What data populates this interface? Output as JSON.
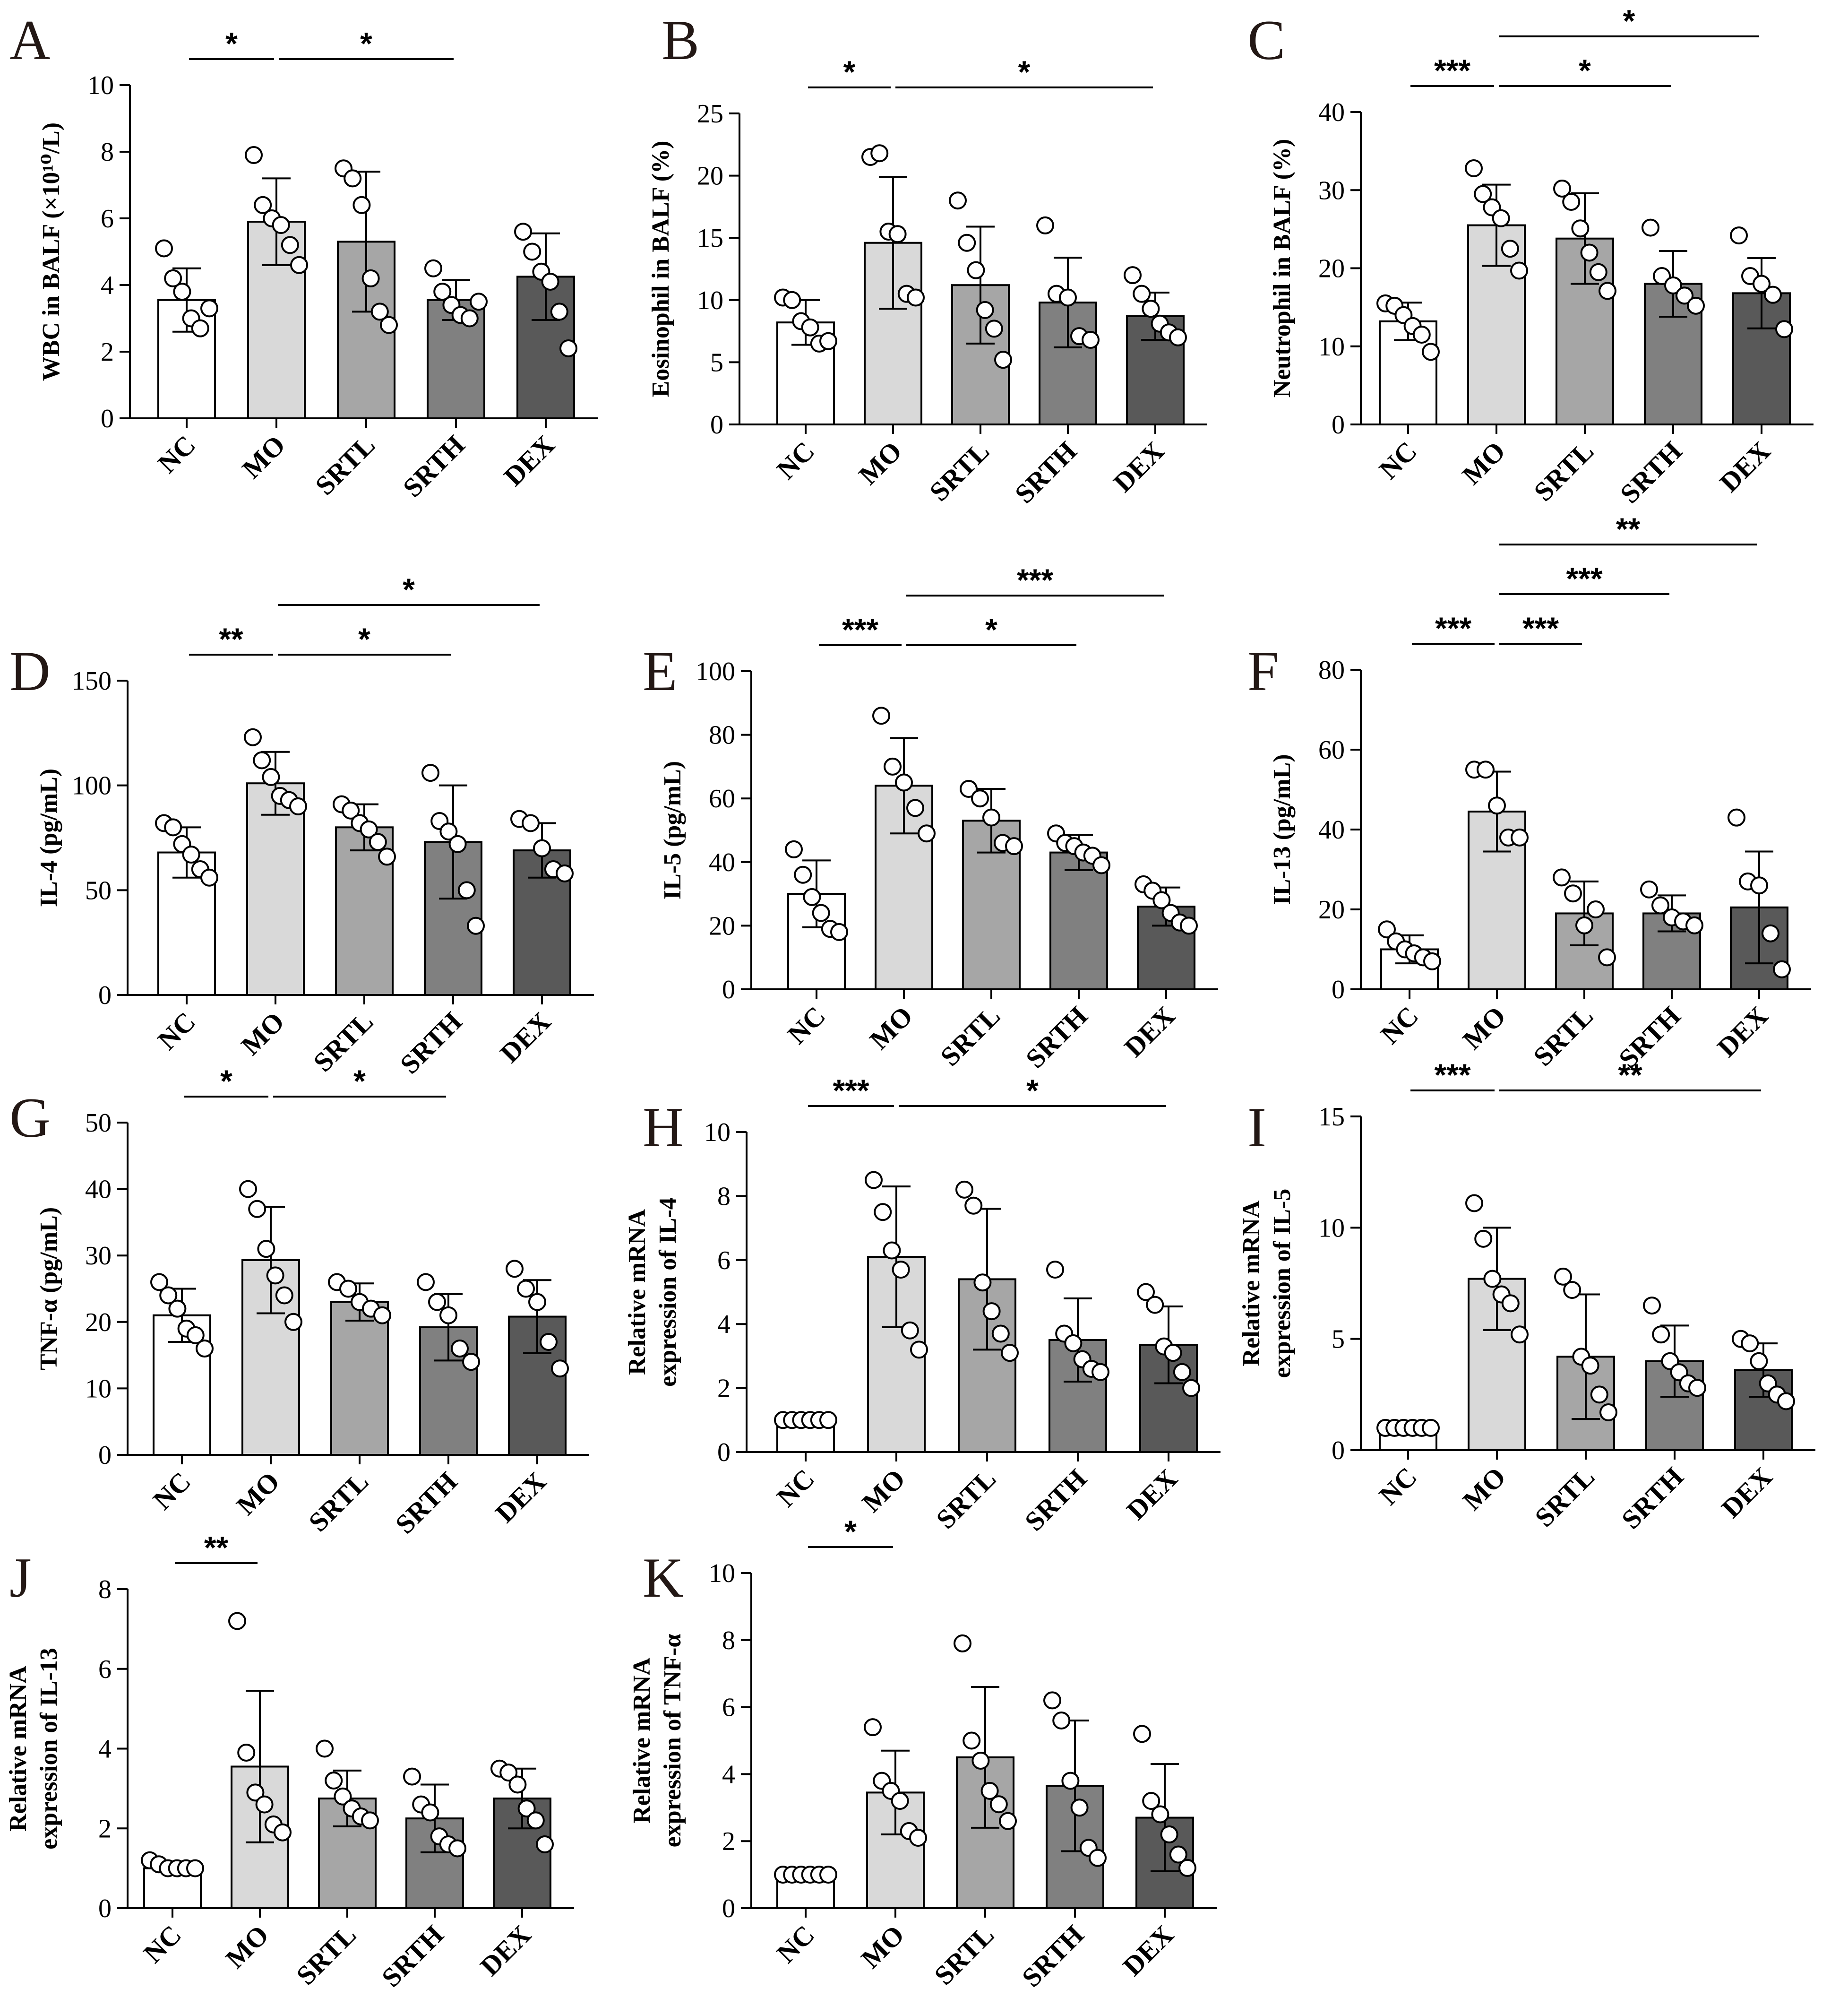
{
  "figure": {
    "categories": [
      "NC",
      "MO",
      "SRTL",
      "SRTH",
      "DEX"
    ],
    "bar_colors": [
      "#ffffff",
      "#d9d9d9",
      "#a6a6a6",
      "#808080",
      "#595959"
    ]
  },
  "chart_data": [
    {
      "panel": "A",
      "type": "bar",
      "ylabel": "WBC in BALF (×10¹⁰/L)",
      "ylim": [
        0,
        10
      ],
      "yticks": [
        "0",
        "2",
        "4",
        "6",
        "8",
        "10"
      ],
      "categories": [
        "NC",
        "MO",
        "SRTL",
        "SRTH",
        "DEX"
      ],
      "values": [
        3.55,
        5.9,
        5.3,
        3.55,
        4.25
      ],
      "errors": [
        0.95,
        1.3,
        2.1,
        0.6,
        1.3
      ],
      "points": [
        [
          5.1,
          4.2,
          3.8,
          3.0,
          2.7,
          3.3
        ],
        [
          7.9,
          6.4,
          6.0,
          5.8,
          5.2,
          4.6
        ],
        [
          7.5,
          7.2,
          6.4,
          4.2,
          3.2,
          2.8
        ],
        [
          4.5,
          3.8,
          3.4,
          3.1,
          3.0,
          3.5
        ],
        [
          5.6,
          5.0,
          4.4,
          4.1,
          3.2,
          2.1
        ]
      ],
      "significance": [
        {
          "from": 0,
          "to": 1,
          "label": "*",
          "level": 1
        },
        {
          "from": 1,
          "to": 3,
          "label": "*",
          "level": 1
        }
      ]
    },
    {
      "panel": "B",
      "type": "bar",
      "ylabel": "Eosinophil  in BALF (%)",
      "ylim": [
        0,
        25
      ],
      "yticks": [
        "0",
        "5",
        "10",
        "15",
        "20",
        "25"
      ],
      "categories": [
        "NC",
        "MO",
        "SRTL",
        "SRTH",
        "DEX"
      ],
      "values": [
        8.2,
        14.6,
        11.2,
        9.8,
        8.7
      ],
      "errors": [
        1.8,
        5.3,
        4.7,
        3.6,
        1.9
      ],
      "points": [
        [
          10.2,
          10.0,
          8.3,
          7.8,
          6.5,
          6.7
        ],
        [
          21.5,
          21.8,
          15.5,
          15.3,
          10.5,
          10.2
        ],
        [
          18.0,
          14.6,
          12.4,
          9.2,
          7.7,
          5.2
        ],
        [
          16.0,
          10.5,
          10.2,
          7.1,
          6.8
        ],
        [
          12.0,
          10.5,
          9.3,
          8.1,
          7.4,
          7.0
        ]
      ],
      "significance": [
        {
          "from": 0,
          "to": 1,
          "label": "*",
          "level": 1
        },
        {
          "from": 1,
          "to": 4,
          "label": "*",
          "level": 1
        }
      ]
    },
    {
      "panel": "C",
      "type": "bar",
      "ylabel": "Neutrophil  in BALF (%)",
      "ylim": [
        0,
        40
      ],
      "yticks": [
        "0",
        "10",
        "20",
        "30",
        "40"
      ],
      "categories": [
        "NC",
        "MO",
        "SRTL",
        "SRTH",
        "DEX"
      ],
      "values": [
        13.2,
        25.5,
        23.8,
        18.0,
        16.8
      ],
      "errors": [
        2.4,
        5.2,
        5.8,
        4.2,
        4.5
      ],
      "points": [
        [
          15.5,
          15.2,
          14.0,
          12.6,
          11.5,
          9.3
        ],
        [
          32.8,
          29.5,
          27.8,
          26.4,
          22.5,
          19.7
        ],
        [
          30.2,
          28.5,
          25.1,
          22.0,
          19.5,
          17.1
        ],
        [
          25.2,
          19.0,
          17.8,
          16.5,
          15.2
        ],
        [
          24.2,
          19.0,
          18.0,
          16.6,
          12.2
        ]
      ],
      "significance": [
        {
          "from": 0,
          "to": 1,
          "label": "***",
          "level": 1
        },
        {
          "from": 1,
          "to": 3,
          "label": "*",
          "level": 1
        },
        {
          "from": 1,
          "to": 4,
          "label": "*",
          "level": 2
        }
      ]
    },
    {
      "panel": "D",
      "type": "bar",
      "ylabel": "IL-4 (pg/mL)",
      "ylim": [
        0,
        150
      ],
      "yticks": [
        "0",
        "50",
        "100",
        "150"
      ],
      "categories": [
        "NC",
        "MO",
        "SRTL",
        "SRTH",
        "DEX"
      ],
      "values": [
        68,
        101,
        80,
        73,
        69
      ],
      "errors": [
        12,
        15,
        11,
        27,
        13
      ],
      "points": [
        [
          82,
          80,
          72,
          67,
          60,
          56
        ],
        [
          123,
          112,
          104,
          95,
          93,
          90
        ],
        [
          91,
          88,
          82,
          79,
          73,
          66
        ],
        [
          106,
          83,
          78,
          72,
          50,
          33
        ],
        [
          84,
          82,
          70,
          60,
          58
        ]
      ],
      "significance": [
        {
          "from": 0,
          "to": 1,
          "label": "**",
          "level": 1
        },
        {
          "from": 1,
          "to": 3,
          "label": "*",
          "level": 1
        },
        {
          "from": 1,
          "to": 4,
          "label": "*",
          "level": 2
        }
      ]
    },
    {
      "panel": "E",
      "type": "bar",
      "ylabel": "IL-5 (pg/mL)",
      "ylim": [
        0,
        100
      ],
      "yticks": [
        "0",
        "20",
        "40",
        "60",
        "80",
        "100"
      ],
      "categories": [
        "NC",
        "MO",
        "SRTL",
        "SRTH",
        "DEX"
      ],
      "values": [
        30,
        64,
        53,
        43,
        26
      ],
      "errors": [
        10.5,
        15,
        10,
        5.5,
        6
      ],
      "points": [
        [
          44,
          36,
          29,
          24,
          19,
          18
        ],
        [
          86,
          70,
          65,
          57,
          49
        ],
        [
          63,
          60,
          54,
          46,
          45
        ],
        [
          49,
          46,
          45,
          43,
          42,
          39
        ],
        [
          33,
          31,
          28,
          24,
          21,
          20
        ]
      ],
      "significance": [
        {
          "from": 0,
          "to": 1,
          "label": "***",
          "level": 1
        },
        {
          "from": 1,
          "to": 3,
          "label": "*",
          "level": 1
        },
        {
          "from": 1,
          "to": 4,
          "label": "***",
          "level": 2
        }
      ]
    },
    {
      "panel": "F",
      "type": "bar",
      "ylabel": "IL-13 (pg/mL)",
      "ylim": [
        0,
        80
      ],
      "yticks": [
        "0",
        "20",
        "40",
        "60",
        "80"
      ],
      "categories": [
        "NC",
        "MO",
        "SRTL",
        "SRTH",
        "DEX"
      ],
      "values": [
        10,
        44.5,
        19,
        19,
        20.5
      ],
      "errors": [
        3.5,
        10,
        8,
        4.5,
        14
      ],
      "points": [
        [
          15,
          12,
          10,
          9,
          8,
          7
        ],
        [
          55,
          55,
          46,
          38,
          38
        ],
        [
          28,
          24,
          16,
          20,
          8
        ],
        [
          25,
          21,
          18,
          17,
          16
        ],
        [
          43,
          27,
          26,
          14,
          5
        ]
      ],
      "significance": [
        {
          "from": 0,
          "to": 1,
          "label": "***",
          "level": 1
        },
        {
          "from": 1,
          "to": 2,
          "label": "***",
          "level": 1
        },
        {
          "from": 1,
          "to": 3,
          "label": "***",
          "level": 2
        },
        {
          "from": 1,
          "to": 4,
          "label": "**",
          "level": 3
        }
      ]
    },
    {
      "panel": "G",
      "type": "bar",
      "ylabel": "TNF-α (pg/mL)",
      "ylim": [
        0,
        50
      ],
      "yticks": [
        "0",
        "10",
        "20",
        "30",
        "40",
        "50"
      ],
      "categories": [
        "NC",
        "MO",
        "SRTL",
        "SRTH",
        "DEX"
      ],
      "values": [
        21,
        29.3,
        23,
        19.2,
        20.8
      ],
      "errors": [
        4,
        8,
        2.8,
        5,
        5.5
      ],
      "points": [
        [
          26,
          24,
          22,
          19,
          18,
          16
        ],
        [
          40,
          37,
          31,
          27,
          24,
          20
        ],
        [
          26,
          25,
          23,
          22,
          21
        ],
        [
          26,
          23,
          21,
          16,
          14
        ],
        [
          28,
          25,
          23,
          17,
          13
        ]
      ],
      "significance": [
        {
          "from": 0,
          "to": 1,
          "label": "*",
          "level": 1
        },
        {
          "from": 1,
          "to": 3,
          "label": "*",
          "level": 1
        }
      ]
    },
    {
      "panel": "H",
      "type": "bar",
      "ylabel": [
        "Relative mRNA",
        "expression of IL-4"
      ],
      "ylim": [
        0,
        10
      ],
      "yticks": [
        "0",
        "2",
        "4",
        "6",
        "8",
        "10"
      ],
      "categories": [
        "NC",
        "MO",
        "SRTL",
        "SRTH",
        "DEX"
      ],
      "values": [
        1,
        6.1,
        5.4,
        3.5,
        3.35
      ],
      "errors": [
        0,
        2.2,
        2.2,
        1.3,
        1.2
      ],
      "points": [
        [
          1,
          1,
          1,
          1,
          1,
          1
        ],
        [
          8.5,
          7.5,
          6.3,
          5.7,
          3.8,
          3.2
        ],
        [
          8.2,
          7.7,
          5.3,
          4.4,
          3.7,
          3.1
        ],
        [
          5.7,
          3.7,
          3.4,
          2.9,
          2.6,
          2.5
        ],
        [
          5.0,
          4.6,
          3.3,
          3.1,
          2.5,
          2.0
        ]
      ],
      "significance": [
        {
          "from": 0,
          "to": 1,
          "label": "***",
          "level": 1
        },
        {
          "from": 1,
          "to": 4,
          "label": "*",
          "level": 1
        }
      ]
    },
    {
      "panel": "I",
      "type": "bar",
      "ylabel": [
        "Relative mRNA",
        "expression of IL-5"
      ],
      "ylim": [
        0,
        15
      ],
      "yticks": [
        "0",
        "5",
        "10",
        "15"
      ],
      "categories": [
        "NC",
        "MO",
        "SRTL",
        "SRTH",
        "DEX"
      ],
      "values": [
        1,
        7.7,
        4.2,
        4.0,
        3.6
      ],
      "errors": [
        0,
        2.3,
        2.8,
        1.6,
        1.2
      ],
      "points": [
        [
          1,
          1,
          1,
          1,
          1,
          1
        ],
        [
          11.1,
          9.5,
          7.7,
          7.0,
          6.6,
          5.2
        ],
        [
          7.8,
          7.2,
          4.2,
          3.8,
          2.5,
          1.7
        ],
        [
          6.5,
          5.2,
          4.0,
          3.5,
          3.0,
          2.8
        ],
        [
          5.0,
          4.8,
          4.0,
          3.0,
          2.5,
          2.2
        ]
      ],
      "significance": [
        {
          "from": 0,
          "to": 1,
          "label": "***",
          "level": 1
        },
        {
          "from": 1,
          "to": 4,
          "label": "**",
          "level": 1
        }
      ]
    },
    {
      "panel": "J",
      "type": "bar",
      "ylabel": [
        "Relative mRNA",
        "expression of IL-13"
      ],
      "ylim": [
        0,
        8
      ],
      "yticks": [
        "0",
        "2",
        "4",
        "6",
        "8"
      ],
      "categories": [
        "NC",
        "MO",
        "SRTL",
        "SRTH",
        "DEX"
      ],
      "values": [
        1,
        3.55,
        2.75,
        2.25,
        2.75
      ],
      "errors": [
        0,
        1.9,
        0.7,
        0.85,
        0.75
      ],
      "points": [
        [
          1.2,
          1.1,
          1.0,
          1.0,
          1.0,
          1.0
        ],
        [
          7.2,
          3.9,
          2.9,
          2.6,
          2.1,
          1.9
        ],
        [
          4.0,
          3.2,
          2.8,
          2.5,
          2.3,
          2.2
        ],
        [
          3.3,
          2.6,
          2.4,
          1.8,
          1.6,
          1.5
        ],
        [
          3.5,
          3.4,
          3.1,
          2.5,
          2.2,
          1.6
        ]
      ],
      "significance": [
        {
          "from": 0,
          "to": 1,
          "label": "**",
          "level": 1
        }
      ]
    },
    {
      "panel": "K",
      "type": "bar",
      "ylabel": [
        "Relative mRNA",
        "expression of TNF-α"
      ],
      "ylim": [
        0,
        10
      ],
      "yticks": [
        "0",
        "2",
        "4",
        "6",
        "8",
        "10"
      ],
      "categories": [
        "NC",
        "MO",
        "SRTL",
        "SRTH",
        "DEX"
      ],
      "values": [
        1,
        3.45,
        4.5,
        3.65,
        2.7
      ],
      "errors": [
        0,
        1.25,
        2.1,
        1.95,
        1.6
      ],
      "points": [
        [
          1,
          1,
          1,
          1,
          1,
          1
        ],
        [
          5.4,
          3.8,
          3.5,
          3.2,
          2.3,
          2.1
        ],
        [
          7.9,
          5.0,
          4.4,
          3.5,
          3.1,
          2.6
        ],
        [
          6.2,
          5.6,
          3.8,
          3.0,
          1.8,
          1.5
        ],
        [
          5.2,
          3.2,
          2.8,
          2.2,
          1.6,
          1.2
        ]
      ],
      "significance": [
        {
          "from": 0,
          "to": 1,
          "label": "*",
          "level": 1
        }
      ]
    }
  ]
}
